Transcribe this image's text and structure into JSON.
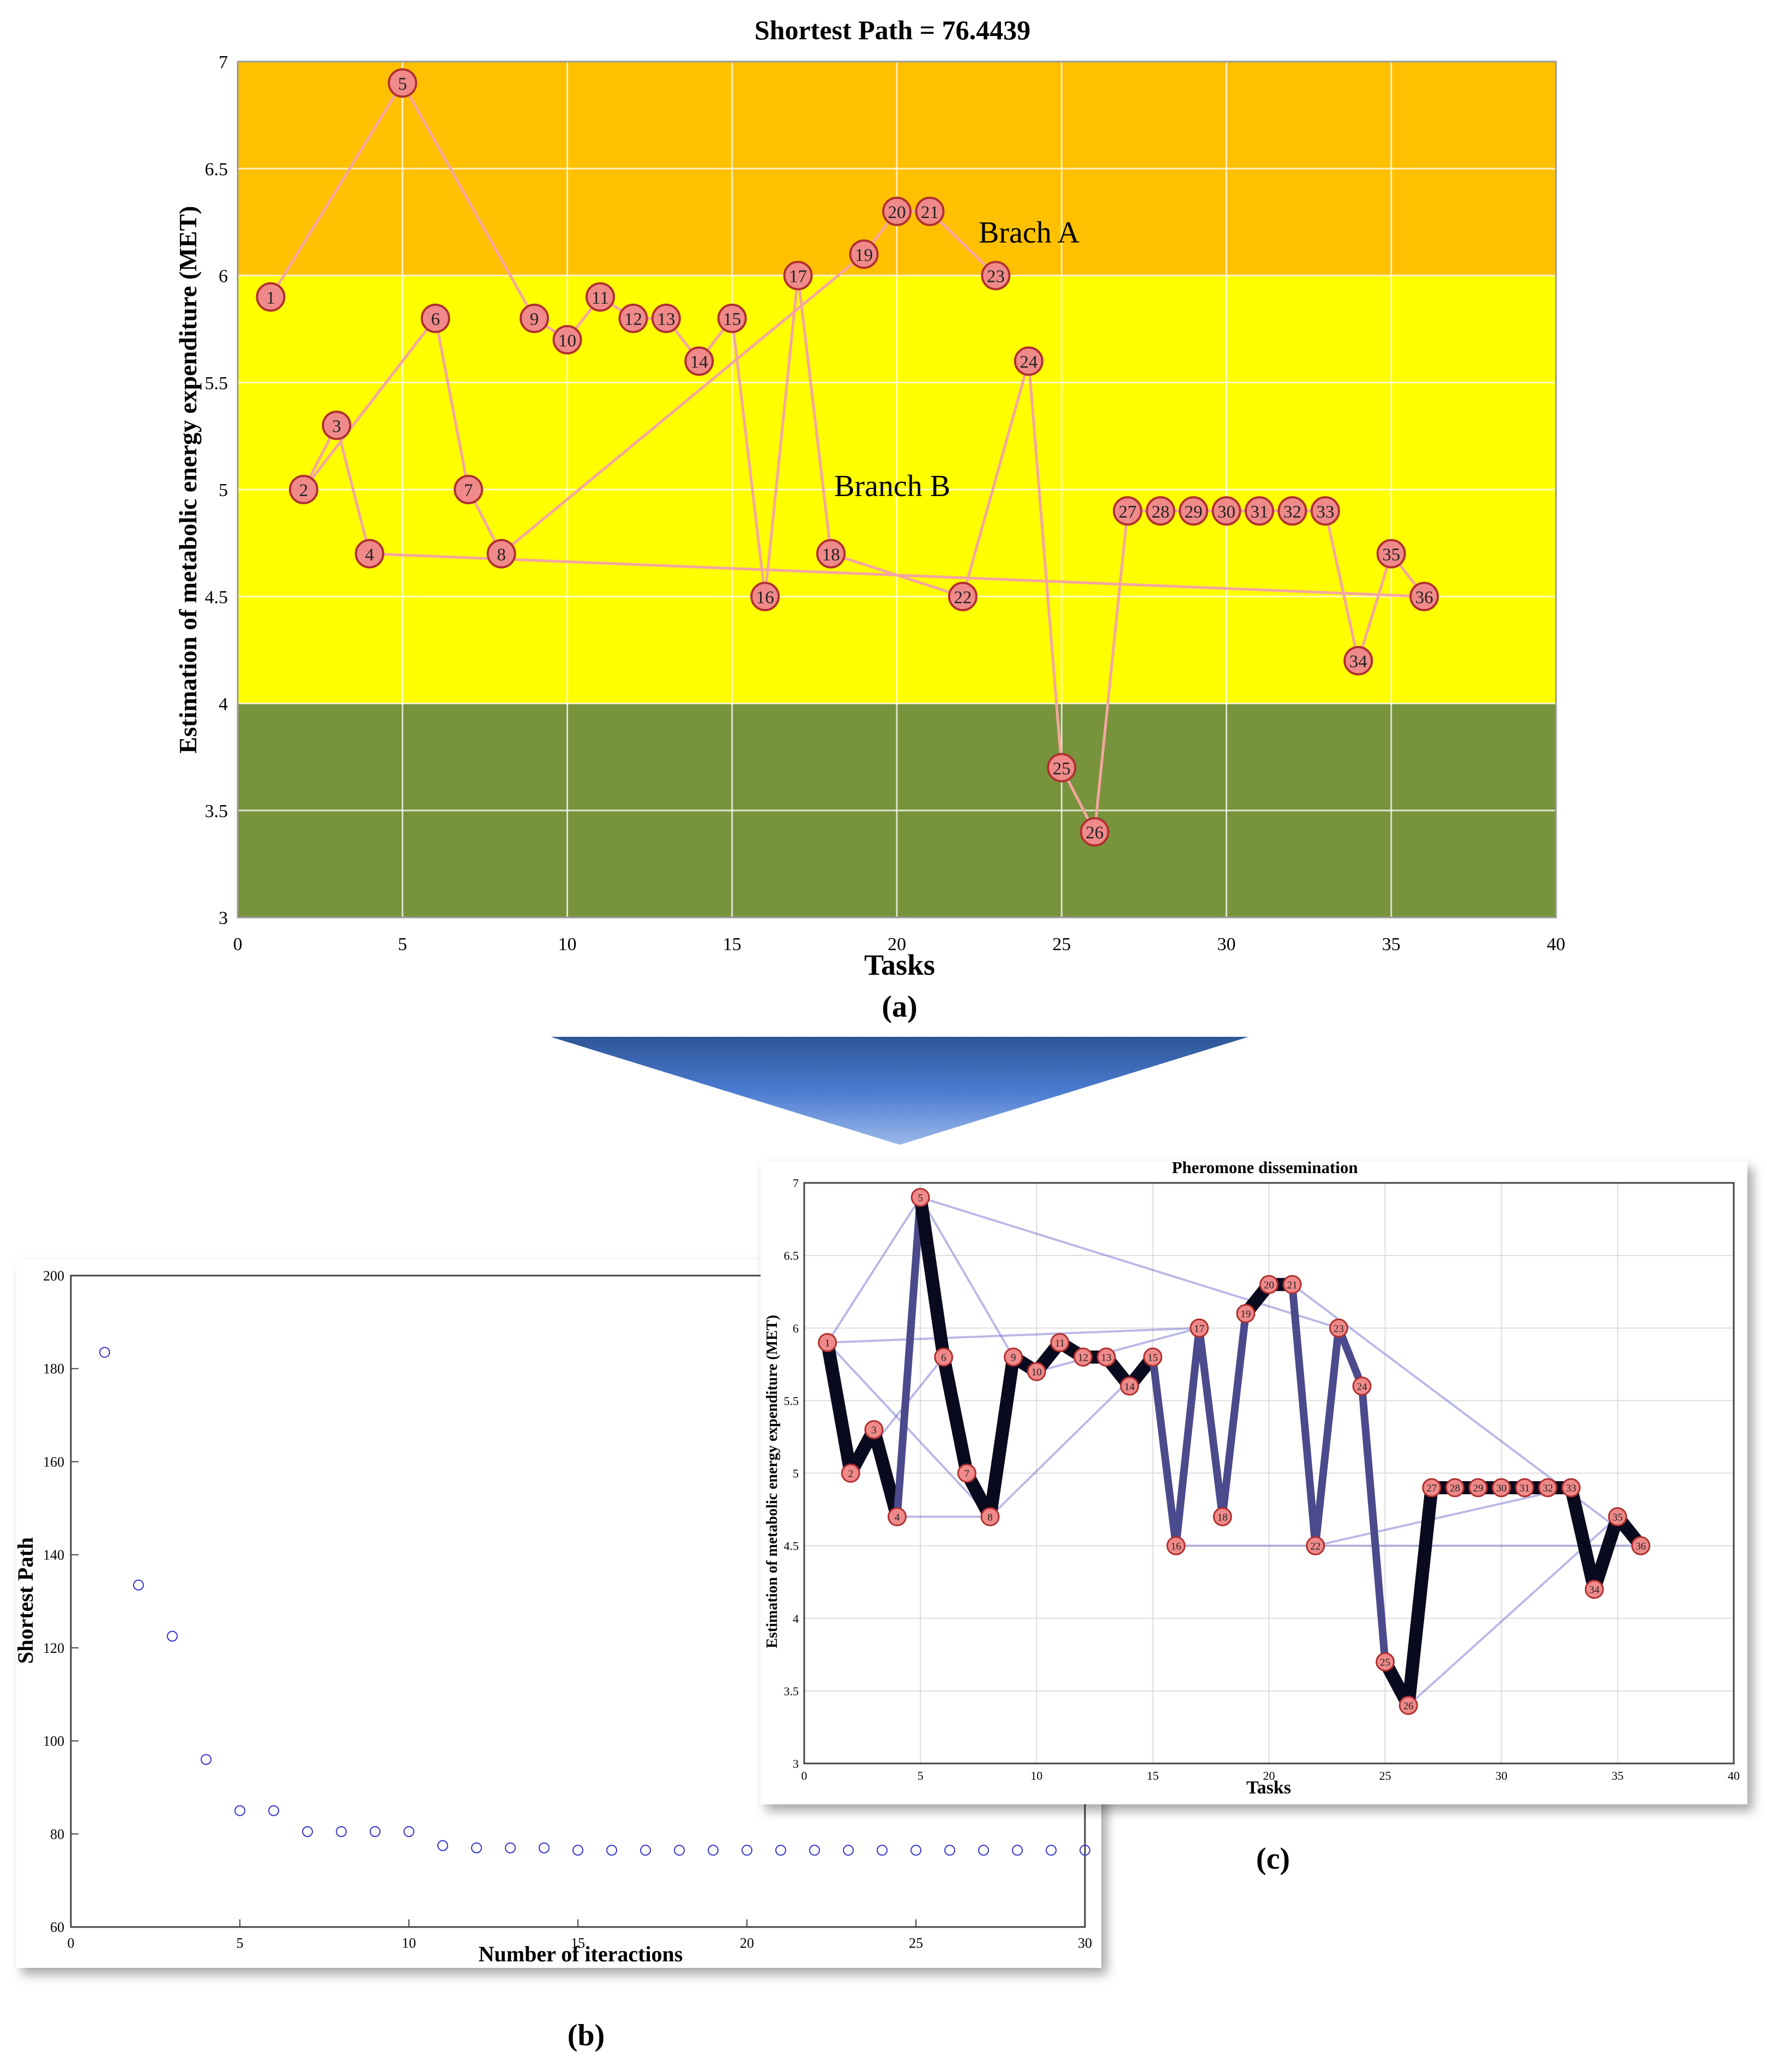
{
  "colors": {
    "band_high": "#FFC000",
    "band_mid": "#FFFF00",
    "band_low": "#77933C",
    "path_line": "#F4A6A0",
    "node_fill": "#F08A8A",
    "node_stroke": "#B03030",
    "iter_marker": "#3333CC",
    "arrow": "#4472C4",
    "pheromone_dark": "#0A0A1E",
    "pheromone_light": "#6666CC"
  },
  "chart_data": [
    {
      "id": "a",
      "type": "line",
      "title": "Shortest Path = 76.4439",
      "xlabel": "Tasks",
      "ylabel": "Estimation of metabolic energy expenditure (MET)",
      "caption": "(a)",
      "xlim": [
        0,
        40
      ],
      "ylim": [
        3,
        7
      ],
      "xticks": [
        0,
        5,
        10,
        15,
        20,
        25,
        30,
        35,
        40
      ],
      "yticks": [
        3,
        3.5,
        4,
        4.5,
        5,
        5.5,
        6,
        6.5,
        7
      ],
      "grid": true,
      "bands": [
        {
          "from": 6,
          "to": 7,
          "color": "#FFC000"
        },
        {
          "from": 4,
          "to": 6,
          "color": "#FFFF00"
        },
        {
          "from": 3,
          "to": 4,
          "color": "#77933C"
        }
      ],
      "annotations": [
        {
          "text": "Brach A",
          "x": 23.2,
          "y": 6.2
        },
        {
          "text": "Branch B",
          "x": 18.1,
          "y": 5.0
        }
      ],
      "nodes": [
        {
          "id": 1,
          "x": 1,
          "y": 5.9
        },
        {
          "id": 2,
          "x": 2,
          "y": 5.0
        },
        {
          "id": 3,
          "x": 3,
          "y": 5.3
        },
        {
          "id": 4,
          "x": 4,
          "y": 4.7
        },
        {
          "id": 5,
          "x": 5,
          "y": 6.9
        },
        {
          "id": 6,
          "x": 6,
          "y": 5.8
        },
        {
          "id": 7,
          "x": 7,
          "y": 5.0
        },
        {
          "id": 8,
          "x": 8,
          "y": 4.7
        },
        {
          "id": 9,
          "x": 9,
          "y": 5.8
        },
        {
          "id": 10,
          "x": 10,
          "y": 5.7
        },
        {
          "id": 11,
          "x": 11,
          "y": 5.9
        },
        {
          "id": 12,
          "x": 12,
          "y": 5.8
        },
        {
          "id": 13,
          "x": 13,
          "y": 5.8
        },
        {
          "id": 14,
          "x": 14,
          "y": 5.6
        },
        {
          "id": 15,
          "x": 15,
          "y": 5.8
        },
        {
          "id": 16,
          "x": 16,
          "y": 4.5
        },
        {
          "id": 17,
          "x": 17,
          "y": 6.0
        },
        {
          "id": 18,
          "x": 18,
          "y": 4.7
        },
        {
          "id": 19,
          "x": 19,
          "y": 6.1
        },
        {
          "id": 20,
          "x": 20,
          "y": 6.3
        },
        {
          "id": 21,
          "x": 21,
          "y": 6.3
        },
        {
          "id": 22,
          "x": 22,
          "y": 4.5
        },
        {
          "id": 23,
          "x": 23,
          "y": 6.0
        },
        {
          "id": 24,
          "x": 24,
          "y": 5.6
        },
        {
          "id": 25,
          "x": 25,
          "y": 3.7
        },
        {
          "id": 26,
          "x": 26,
          "y": 3.4
        },
        {
          "id": 27,
          "x": 27,
          "y": 4.9
        },
        {
          "id": 28,
          "x": 28,
          "y": 4.9
        },
        {
          "id": 29,
          "x": 29,
          "y": 4.9
        },
        {
          "id": 30,
          "x": 30,
          "y": 4.9
        },
        {
          "id": 31,
          "x": 31,
          "y": 4.9
        },
        {
          "id": 32,
          "x": 32,
          "y": 4.9
        },
        {
          "id": 33,
          "x": 33,
          "y": 4.9
        },
        {
          "id": 34,
          "x": 34,
          "y": 4.2
        },
        {
          "id": 35,
          "x": 35,
          "y": 4.7
        },
        {
          "id": 36,
          "x": 36,
          "y": 4.5
        }
      ],
      "path": [
        1,
        5,
        9,
        10,
        11,
        12,
        13,
        14,
        15,
        16,
        17,
        18,
        22,
        24,
        25,
        26,
        27,
        28,
        29,
        30,
        31,
        32,
        33,
        34,
        35,
        36,
        4,
        3,
        2,
        6,
        7,
        8,
        19,
        20,
        21,
        23
      ]
    },
    {
      "id": "b",
      "type": "scatter",
      "title": "",
      "xlabel": "Number of iteractions",
      "ylabel": "Shortest Path",
      "caption": "(b)",
      "xlim": [
        0,
        30
      ],
      "ylim": [
        60,
        200
      ],
      "xticks": [
        0,
        5,
        10,
        15,
        20,
        25,
        30
      ],
      "yticks": [
        60,
        80,
        100,
        120,
        140,
        160,
        180,
        200
      ],
      "grid": false,
      "x": [
        1,
        2,
        3,
        4,
        5,
        6,
        7,
        8,
        9,
        10,
        11,
        12,
        13,
        14,
        15,
        16,
        17,
        18,
        19,
        20,
        21,
        22,
        23,
        24,
        25,
        26,
        27,
        28,
        29,
        30
      ],
      "y": [
        183.5,
        133.5,
        122.5,
        96,
        85,
        85,
        80.5,
        80.5,
        80.5,
        80.5,
        77.5,
        77,
        77,
        77,
        76.5,
        76.5,
        76.5,
        76.5,
        76.5,
        76.5,
        76.5,
        76.5,
        76.5,
        76.5,
        76.5,
        76.5,
        76.5,
        76.5,
        76.5,
        76.5
      ]
    },
    {
      "id": "c",
      "type": "line",
      "title": "Pheromone dissemination",
      "xlabel": "Tasks",
      "ylabel": "Estimation of metabolic energy expenditure (MET)",
      "caption": "(c)",
      "xlim": [
        0,
        40
      ],
      "ylim": [
        3,
        7
      ],
      "xticks": [
        0,
        5,
        10,
        15,
        20,
        25,
        30,
        35,
        40
      ],
      "yticks": [
        3,
        3.5,
        4,
        4.5,
        5,
        5.5,
        6,
        6.5,
        7
      ],
      "grid": true,
      "strong_path": [
        1,
        2,
        3,
        4,
        5,
        6,
        7,
        8,
        9,
        10,
        11,
        12,
        13,
        14,
        15,
        16,
        17,
        18,
        19,
        20,
        21,
        22,
        23,
        24,
        25,
        26,
        27,
        28,
        29,
        30,
        31,
        32,
        33,
        34,
        35,
        36
      ],
      "medium_edges": [
        [
          4,
          5
        ],
        [
          15,
          16
        ],
        [
          16,
          17
        ],
        [
          17,
          18
        ],
        [
          18,
          19
        ],
        [
          21,
          22
        ],
        [
          22,
          23
        ],
        [
          23,
          24
        ],
        [
          24,
          25
        ]
      ],
      "light_edges": [
        [
          1,
          5
        ],
        [
          1,
          8
        ],
        [
          16,
          36
        ],
        [
          22,
          33
        ],
        [
          8,
          15
        ],
        [
          1,
          17
        ],
        [
          5,
          9
        ],
        [
          4,
          8
        ],
        [
          2,
          6
        ],
        [
          10,
          17
        ],
        [
          26,
          35
        ],
        [
          5,
          23
        ],
        [
          21,
          36
        ]
      ]
    }
  ]
}
